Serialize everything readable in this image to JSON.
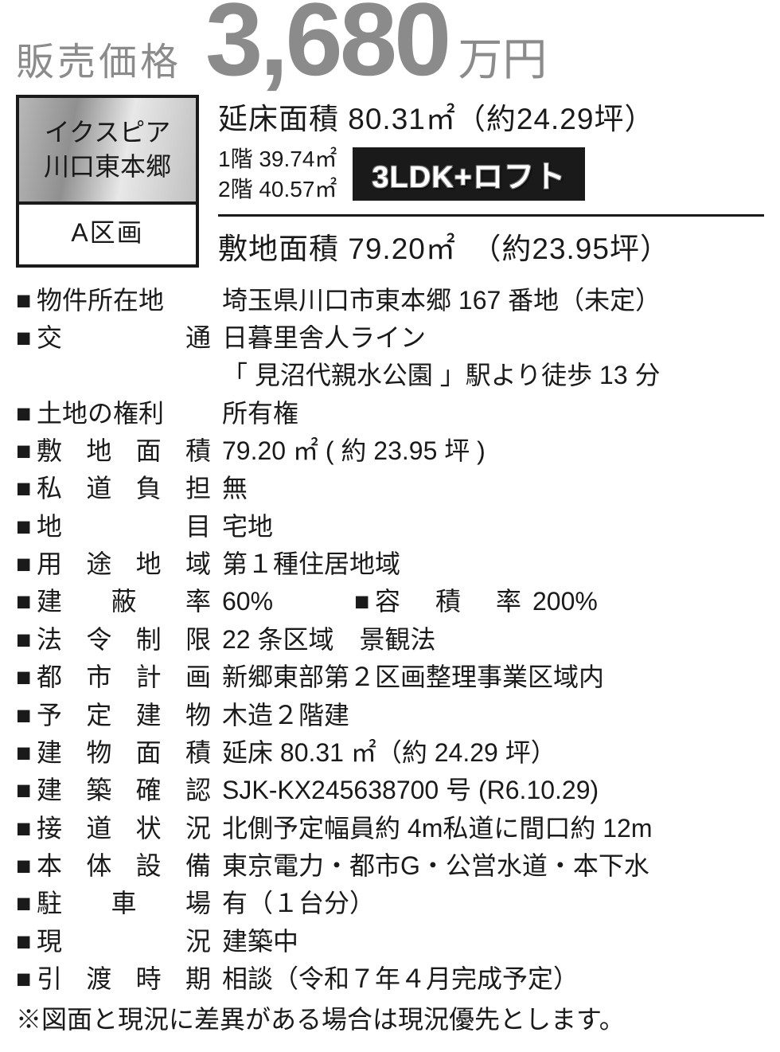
{
  "price": {
    "label": "販売価格",
    "amount": "3,680",
    "unit": "万円"
  },
  "property": {
    "name_line1": "イクスピア",
    "name_line2": "川口東本郷",
    "section": "A区画"
  },
  "areas": {
    "floor_area": "延床面積 80.31㎡（約24.29坪）",
    "floor1": "1階 39.74㎡",
    "floor2": "2階 40.57㎡",
    "layout": "3LDK+ロフト",
    "site_area": "敷地面積 79.20㎡　（約23.95坪）"
  },
  "bullet": "■",
  "details": [
    {
      "label": "物件所在地",
      "value": "埼玉県川口市東本郷 167 番地（未定）",
      "justify": false
    },
    {
      "label": "交通",
      "value": "日暮里舎人ライン",
      "justify": true
    },
    {
      "label": "",
      "value": "「 見沼代親水公園 」駅より徒歩 13 分",
      "nolabel": true
    },
    {
      "label": "土地の権利",
      "value": "所有権",
      "justify": false
    },
    {
      "label": "敷地面積",
      "value": "79.20 ㎡ ( 約 23.95 坪 )",
      "justify": true
    },
    {
      "label": "私道負担",
      "value": "無",
      "justify": true
    },
    {
      "label": "地目",
      "value": "宅地",
      "justify": true
    },
    {
      "label": "用途地域",
      "value": "第１種住居地域",
      "justify": true
    },
    {
      "dual": true,
      "label1": "建蔽率",
      "value1": "60%",
      "label2": "容積率",
      "value2": "200%"
    },
    {
      "label": "法令制限",
      "value": "22 条区域　景観法",
      "justify": true
    },
    {
      "label": "都市計画",
      "value": "新郷東部第２区画整理事業区域内",
      "justify": true
    },
    {
      "label": "予定建物",
      "value": "木造２階建",
      "justify": true
    },
    {
      "label": "建物面積",
      "value": "延床 80.31 ㎡（約 24.29 坪）",
      "justify": true
    },
    {
      "label": "建築確認",
      "value": "SJK-KX245638700 号 (R6.10.29)",
      "justify": true
    },
    {
      "label": "接道状況",
      "value": "北側予定幅員約 4m私道に間口約 12m",
      "justify": true
    },
    {
      "label": "本体設備",
      "value": "東京電力・都市G・公営水道・本下水",
      "justify": true
    },
    {
      "label": "駐車場",
      "value": "有（１台分）",
      "justify": true
    },
    {
      "label": "現況",
      "value": "建築中",
      "justify": true
    },
    {
      "label": "引渡時期",
      "value": "相談（令和７年４月完成予定）",
      "justify": true
    }
  ],
  "note": "※図面と現況に差異がある場合は現況優先とします。"
}
